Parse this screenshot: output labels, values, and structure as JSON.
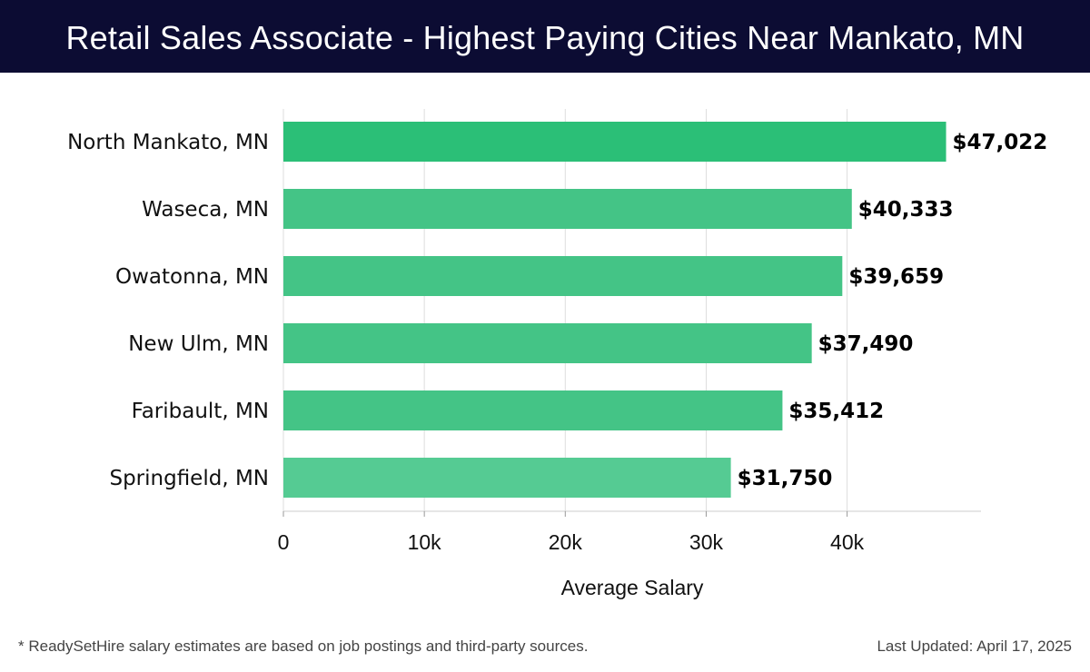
{
  "header": {
    "title": "Retail Sales Associate - Highest Paying Cities Near Mankato, MN"
  },
  "footer": {
    "note": "* ReadySetHire salary estimates are based on job postings and third-party sources.",
    "updated": "Last Updated: April 17, 2025"
  },
  "chart_data": {
    "type": "bar",
    "orientation": "horizontal",
    "title": "Retail Sales Associate - Highest Paying Cities Near Mankato, MN",
    "xlabel": "Average Salary",
    "ylabel": "",
    "categories": [
      "North Mankato, MN",
      "Waseca, MN",
      "Owatonna, MN",
      "New Ulm, MN",
      "Faribault, MN",
      "Springfield, MN"
    ],
    "values": [
      47022,
      40333,
      39659,
      37490,
      35412,
      31750
    ],
    "value_labels": [
      "$47,022",
      "$40,333",
      "$39,659",
      "$37,490",
      "$35,412",
      "$31,750"
    ],
    "xlim": [
      0,
      49500
    ],
    "xticks": [
      0,
      10000,
      20000,
      30000,
      40000
    ],
    "xtick_labels": [
      "0",
      "10k",
      "20k",
      "30k",
      "40k"
    ],
    "grid": true,
    "colors": {
      "top_bar": "#2bbf77",
      "bar": "#44c486",
      "bar_light": "#55cb93",
      "header_bg": "#0c0c33"
    }
  }
}
